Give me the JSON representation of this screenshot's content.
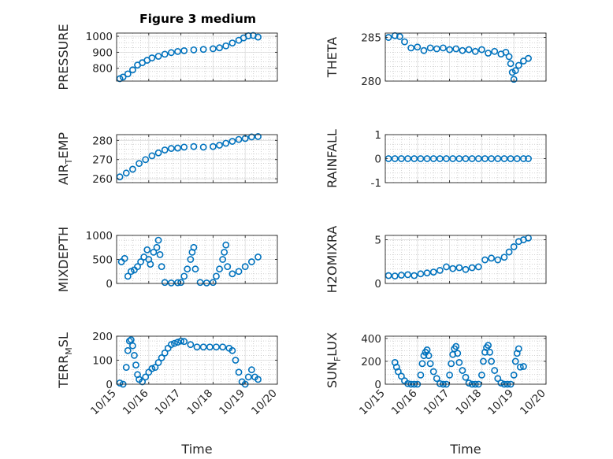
{
  "title": "Figure 3 medium",
  "colors": {
    "marker": "#0072BD",
    "axis": "#262626",
    "grid": "#b9b9b9",
    "background": "#ffffff"
  },
  "chart_data": [
    {
      "type": "scatter",
      "ylabel": "PRESSURE",
      "ylabel_sub": null,
      "xlim": [
        0,
        5
      ],
      "ylim": [
        720,
        1020
      ],
      "yticks": [
        800,
        900,
        1000
      ],
      "ytick_labels": [
        "800",
        "900",
        "1000"
      ],
      "xticks": [
        0,
        1,
        2,
        3,
        4,
        5
      ],
      "xtick_labels": [],
      "grid": true,
      "minor_grid": true,
      "points": [
        [
          0.1,
          735
        ],
        [
          0.2,
          745
        ],
        [
          0.35,
          765
        ],
        [
          0.5,
          790
        ],
        [
          0.65,
          820
        ],
        [
          0.8,
          835
        ],
        [
          0.95,
          850
        ],
        [
          1.1,
          865
        ],
        [
          1.3,
          875
        ],
        [
          1.5,
          888
        ],
        [
          1.7,
          898
        ],
        [
          1.9,
          905
        ],
        [
          2.1,
          910
        ],
        [
          2.4,
          915
        ],
        [
          2.7,
          918
        ],
        [
          3.0,
          922
        ],
        [
          3.2,
          928
        ],
        [
          3.4,
          940
        ],
        [
          3.6,
          958
        ],
        [
          3.8,
          975
        ],
        [
          3.95,
          990
        ],
        [
          4.1,
          1003
        ],
        [
          4.25,
          1005
        ],
        [
          4.4,
          995
        ]
      ]
    },
    {
      "type": "scatter",
      "ylabel": "THETA",
      "ylabel_sub": null,
      "xlim": [
        0,
        5
      ],
      "ylim": [
        280,
        285.5
      ],
      "yticks": [
        280,
        285
      ],
      "ytick_labels": [
        "280",
        "285"
      ],
      "xticks": [
        0,
        1,
        2,
        3,
        4,
        5
      ],
      "xtick_labels": [],
      "grid": true,
      "minor_grid": true,
      "points": [
        [
          0.1,
          285.0
        ],
        [
          0.3,
          285.2
        ],
        [
          0.45,
          285.1
        ],
        [
          0.6,
          284.5
        ],
        [
          0.8,
          283.8
        ],
        [
          1.0,
          283.9
        ],
        [
          1.2,
          283.5
        ],
        [
          1.4,
          283.8
        ],
        [
          1.6,
          283.7
        ],
        [
          1.8,
          283.8
        ],
        [
          2.0,
          283.6
        ],
        [
          2.2,
          283.7
        ],
        [
          2.4,
          283.5
        ],
        [
          2.6,
          283.6
        ],
        [
          2.8,
          283.4
        ],
        [
          3.0,
          283.6
        ],
        [
          3.2,
          283.2
        ],
        [
          3.4,
          283.4
        ],
        [
          3.6,
          283.1
        ],
        [
          3.75,
          283.3
        ],
        [
          3.85,
          282.8
        ],
        [
          3.9,
          282.0
        ],
        [
          3.95,
          281.0
        ],
        [
          4.0,
          280.2
        ],
        [
          4.05,
          281.2
        ],
        [
          4.15,
          281.8
        ],
        [
          4.3,
          282.3
        ],
        [
          4.45,
          282.6
        ]
      ]
    },
    {
      "type": "scatter",
      "ylabel": "AIR",
      "ylabel_sub": "T",
      "ylabel_tail": "EMP",
      "xlim": [
        0,
        5
      ],
      "ylim": [
        258,
        283
      ],
      "yticks": [
        260,
        270,
        280
      ],
      "ytick_labels": [
        "260",
        "270",
        "280"
      ],
      "xticks": [
        0,
        1,
        2,
        3,
        4,
        5
      ],
      "xtick_labels": [],
      "grid": true,
      "minor_grid": true,
      "points": [
        [
          0.1,
          261
        ],
        [
          0.3,
          263
        ],
        [
          0.5,
          265
        ],
        [
          0.7,
          268
        ],
        [
          0.9,
          270
        ],
        [
          1.1,
          272
        ],
        [
          1.3,
          273.5
        ],
        [
          1.5,
          275
        ],
        [
          1.7,
          275.8
        ],
        [
          1.9,
          276
        ],
        [
          2.1,
          276.5
        ],
        [
          2.4,
          276.8
        ],
        [
          2.7,
          276.5
        ],
        [
          3.0,
          276.8
        ],
        [
          3.2,
          277.5
        ],
        [
          3.4,
          278.5
        ],
        [
          3.6,
          279.5
        ],
        [
          3.8,
          280.5
        ],
        [
          4.0,
          281
        ],
        [
          4.2,
          281.8
        ],
        [
          4.4,
          282
        ]
      ]
    },
    {
      "type": "scatter",
      "ylabel": "RAINFALL",
      "ylabel_sub": null,
      "xlim": [
        0,
        5
      ],
      "ylim": [
        -1,
        1
      ],
      "yticks": [
        -1,
        0,
        1
      ],
      "ytick_labels": [
        "-1",
        "0",
        "1"
      ],
      "xticks": [
        0,
        1,
        2,
        3,
        4,
        5
      ],
      "xtick_labels": [],
      "grid": true,
      "minor_grid": true,
      "points": [
        [
          0.1,
          0
        ],
        [
          0.3,
          0
        ],
        [
          0.5,
          0
        ],
        [
          0.7,
          0
        ],
        [
          0.9,
          0
        ],
        [
          1.1,
          0
        ],
        [
          1.3,
          0
        ],
        [
          1.5,
          0
        ],
        [
          1.7,
          0
        ],
        [
          1.9,
          0
        ],
        [
          2.1,
          0
        ],
        [
          2.3,
          0
        ],
        [
          2.5,
          0
        ],
        [
          2.7,
          0
        ],
        [
          2.9,
          0
        ],
        [
          3.1,
          0
        ],
        [
          3.3,
          0
        ],
        [
          3.5,
          0
        ],
        [
          3.7,
          0
        ],
        [
          3.9,
          0
        ],
        [
          4.1,
          0
        ],
        [
          4.3,
          0
        ],
        [
          4.45,
          0
        ]
      ]
    },
    {
      "type": "scatter",
      "ylabel": "MIXDEPTH",
      "ylabel_sub": null,
      "xlim": [
        0,
        5
      ],
      "ylim": [
        0,
        1000
      ],
      "yticks": [
        0,
        500,
        1000
      ],
      "ytick_labels": [
        "0",
        "500",
        "1000"
      ],
      "xticks": [
        0,
        1,
        2,
        3,
        4,
        5
      ],
      "xtick_labels": [],
      "grid": true,
      "minor_grid": true,
      "points": [
        [
          0.15,
          450
        ],
        [
          0.25,
          520
        ],
        [
          0.35,
          150
        ],
        [
          0.45,
          250
        ],
        [
          0.55,
          280
        ],
        [
          0.65,
          350
        ],
        [
          0.75,
          450
        ],
        [
          0.85,
          550
        ],
        [
          0.95,
          700
        ],
        [
          1.0,
          500
        ],
        [
          1.05,
          400
        ],
        [
          1.15,
          650
        ],
        [
          1.25,
          750
        ],
        [
          1.3,
          900
        ],
        [
          1.35,
          600
        ],
        [
          1.4,
          350
        ],
        [
          1.5,
          20
        ],
        [
          1.7,
          10
        ],
        [
          1.9,
          15
        ],
        [
          2.0,
          20
        ],
        [
          2.1,
          150
        ],
        [
          2.2,
          300
        ],
        [
          2.3,
          500
        ],
        [
          2.35,
          650
        ],
        [
          2.4,
          750
        ],
        [
          2.45,
          300
        ],
        [
          2.6,
          20
        ],
        [
          2.8,
          10
        ],
        [
          3.0,
          20
        ],
        [
          3.1,
          150
        ],
        [
          3.2,
          300
        ],
        [
          3.3,
          500
        ],
        [
          3.35,
          650
        ],
        [
          3.4,
          800
        ],
        [
          3.45,
          350
        ],
        [
          3.6,
          200
        ],
        [
          3.8,
          250
        ],
        [
          4.0,
          350
        ],
        [
          4.2,
          450
        ],
        [
          4.4,
          550
        ]
      ]
    },
    {
      "type": "scatter",
      "ylabel": "H2OMIXRA",
      "ylabel_sub": null,
      "xlim": [
        0,
        5
      ],
      "ylim": [
        0,
        5.5
      ],
      "yticks": [
        0,
        5
      ],
      "ytick_labels": [
        "0",
        "5"
      ],
      "xticks": [
        0,
        1,
        2,
        3,
        4,
        5
      ],
      "xtick_labels": [],
      "grid": true,
      "minor_grid": true,
      "points": [
        [
          0.1,
          0.9
        ],
        [
          0.3,
          0.85
        ],
        [
          0.5,
          0.95
        ],
        [
          0.7,
          1.0
        ],
        [
          0.9,
          0.9
        ],
        [
          1.1,
          1.1
        ],
        [
          1.3,
          1.2
        ],
        [
          1.5,
          1.3
        ],
        [
          1.7,
          1.5
        ],
        [
          1.9,
          1.9
        ],
        [
          2.1,
          1.7
        ],
        [
          2.3,
          1.8
        ],
        [
          2.5,
          1.6
        ],
        [
          2.7,
          1.8
        ],
        [
          2.9,
          1.9
        ],
        [
          3.1,
          2.7
        ],
        [
          3.3,
          2.9
        ],
        [
          3.5,
          2.7
        ],
        [
          3.7,
          3.0
        ],
        [
          3.85,
          3.6
        ],
        [
          4.0,
          4.2
        ],
        [
          4.15,
          4.8
        ],
        [
          4.3,
          5.0
        ],
        [
          4.45,
          5.2
        ]
      ]
    },
    {
      "type": "scatter",
      "ylabel": "TERR",
      "ylabel_sub": "M",
      "ylabel_tail": "SL",
      "xlim": [
        0,
        5
      ],
      "ylim": [
        0,
        200
      ],
      "yticks": [
        0,
        100,
        200
      ],
      "ytick_labels": [
        "0",
        "100",
        "200"
      ],
      "xticks": [
        0,
        1,
        2,
        3,
        4,
        5
      ],
      "xtick_labels": [
        "10/15",
        "10/16",
        "10/17",
        "10/18",
        "10/19",
        "10/20"
      ],
      "xlabel": "Time",
      "grid": true,
      "minor_grid": true,
      "points": [
        [
          0.1,
          5
        ],
        [
          0.2,
          0
        ],
        [
          0.3,
          70
        ],
        [
          0.35,
          140
        ],
        [
          0.4,
          180
        ],
        [
          0.45,
          185
        ],
        [
          0.5,
          160
        ],
        [
          0.55,
          120
        ],
        [
          0.6,
          80
        ],
        [
          0.65,
          40
        ],
        [
          0.7,
          20
        ],
        [
          0.8,
          10
        ],
        [
          0.9,
          30
        ],
        [
          1.0,
          50
        ],
        [
          1.1,
          65
        ],
        [
          1.2,
          70
        ],
        [
          1.3,
          90
        ],
        [
          1.4,
          110
        ],
        [
          1.5,
          130
        ],
        [
          1.6,
          150
        ],
        [
          1.7,
          165
        ],
        [
          1.8,
          170
        ],
        [
          1.9,
          175
        ],
        [
          2.0,
          180
        ],
        [
          2.1,
          178
        ],
        [
          2.3,
          165
        ],
        [
          2.5,
          155
        ],
        [
          2.7,
          155
        ],
        [
          2.9,
          155
        ],
        [
          3.1,
          155
        ],
        [
          3.3,
          155
        ],
        [
          3.5,
          150
        ],
        [
          3.6,
          140
        ],
        [
          3.7,
          100
        ],
        [
          3.8,
          50
        ],
        [
          3.9,
          10
        ],
        [
          4.0,
          0
        ],
        [
          4.1,
          30
        ],
        [
          4.2,
          60
        ],
        [
          4.3,
          30
        ],
        [
          4.4,
          20
        ]
      ]
    },
    {
      "type": "scatter",
      "ylabel": "SUN",
      "ylabel_sub": "F",
      "ylabel_tail": "LUX",
      "xlim": [
        0,
        5
      ],
      "ylim": [
        0,
        420
      ],
      "yticks": [
        0,
        200,
        400
      ],
      "ytick_labels": [
        "0",
        "200",
        "400"
      ],
      "xticks": [
        0,
        1,
        2,
        3,
        4,
        5
      ],
      "xtick_labels": [
        "10/15",
        "10/16",
        "10/17",
        "10/18",
        "10/19",
        "10/20"
      ],
      "xlabel": "Time",
      "grid": true,
      "minor_grid": true,
      "points": [
        [
          0.3,
          190
        ],
        [
          0.35,
          150
        ],
        [
          0.4,
          110
        ],
        [
          0.5,
          70
        ],
        [
          0.6,
          30
        ],
        [
          0.7,
          5
        ],
        [
          0.8,
          0
        ],
        [
          0.9,
          0
        ],
        [
          1.0,
          0
        ],
        [
          1.1,
          80
        ],
        [
          1.15,
          180
        ],
        [
          1.2,
          250
        ],
        [
          1.25,
          280
        ],
        [
          1.3,
          300
        ],
        [
          1.35,
          250
        ],
        [
          1.4,
          180
        ],
        [
          1.5,
          110
        ],
        [
          1.6,
          50
        ],
        [
          1.7,
          5
        ],
        [
          1.8,
          0
        ],
        [
          1.9,
          0
        ],
        [
          2.0,
          80
        ],
        [
          2.05,
          180
        ],
        [
          2.1,
          260
        ],
        [
          2.15,
          310
        ],
        [
          2.2,
          330
        ],
        [
          2.25,
          270
        ],
        [
          2.3,
          190
        ],
        [
          2.4,
          120
        ],
        [
          2.5,
          60
        ],
        [
          2.6,
          10
        ],
        [
          2.7,
          0
        ],
        [
          2.8,
          0
        ],
        [
          2.9,
          0
        ],
        [
          3.0,
          80
        ],
        [
          3.05,
          200
        ],
        [
          3.1,
          280
        ],
        [
          3.15,
          320
        ],
        [
          3.2,
          340
        ],
        [
          3.25,
          280
        ],
        [
          3.3,
          200
        ],
        [
          3.4,
          120
        ],
        [
          3.5,
          50
        ],
        [
          3.6,
          10
        ],
        [
          3.7,
          0
        ],
        [
          3.8,
          0
        ],
        [
          3.9,
          0
        ],
        [
          4.0,
          80
        ],
        [
          4.05,
          200
        ],
        [
          4.1,
          270
        ],
        [
          4.15,
          310
        ],
        [
          4.2,
          150
        ],
        [
          4.3,
          155
        ]
      ]
    }
  ]
}
